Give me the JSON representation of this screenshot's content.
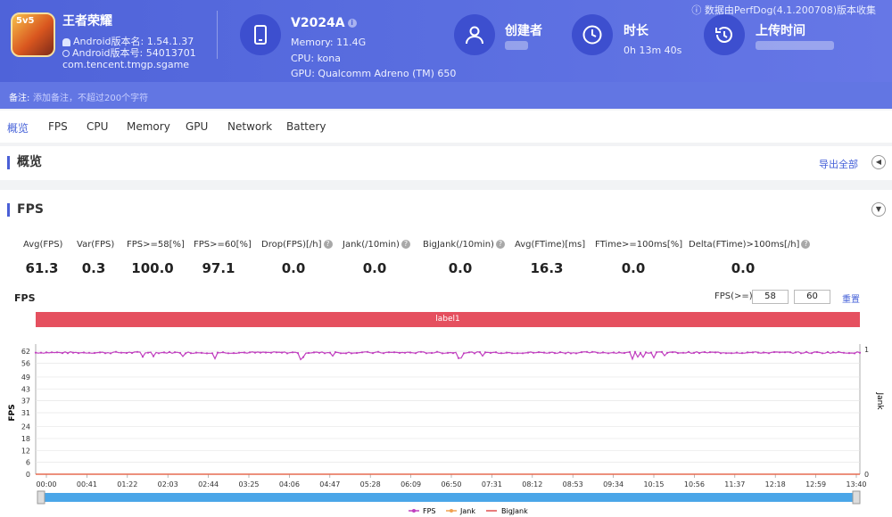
{
  "header": {
    "notice": "数据由PerfDog(4.1.200708)版本收集",
    "app_icon_text": "5v5",
    "app_name": "王者荣耀",
    "android_version": "Android版本名: 1.54.1.37",
    "android_build": "Android版本号: 54013701",
    "package": "com.tencent.tmgp.sgame",
    "device_name": "V2024A",
    "memory": "Memory: 11.4G",
    "cpu": "CPU: kona",
    "gpu": "GPU: Qualcomm Adreno (TM) 650",
    "creator_label": "创建者",
    "duration_label": "时长",
    "duration_value": "0h 13m 40s",
    "upload_label": "上传时间"
  },
  "remark": {
    "label": "备注:",
    "placeholder": "添加备注，不超过200个字符"
  },
  "tabs": [
    "概览",
    "FPS",
    "CPU",
    "Memory",
    "GPU",
    "Network",
    "Battery"
  ],
  "overview": {
    "title": "概览",
    "export": "导出全部"
  },
  "fps_section": {
    "title": "FPS",
    "metrics": [
      {
        "label": "Avg(FPS)",
        "value": "61.3",
        "help": false
      },
      {
        "label": "Var(FPS)",
        "value": "0.3",
        "help": false
      },
      {
        "label": "FPS>=58[%]",
        "value": "100.0",
        "help": false
      },
      {
        "label": "FPS>=60[%]",
        "value": "97.1",
        "help": false
      },
      {
        "label": "Drop(FPS)[/h]",
        "value": "0.0",
        "help": true
      },
      {
        "label": "Jank(/10min)",
        "value": "0.0",
        "help": true
      },
      {
        "label": "BigJank(/10min)",
        "value": "0.0",
        "help": true
      },
      {
        "label": "Avg(FTime)[ms]",
        "value": "16.3",
        "help": false
      },
      {
        "label": "FTime>=100ms[%]",
        "value": "0.0",
        "help": false
      },
      {
        "label": "Delta(FTime)>100ms[/h]",
        "value": "0.0",
        "help": true
      }
    ],
    "chart_title": "FPS",
    "threshold_label": "FPS(>=)",
    "threshold_1": "58",
    "threshold_2": "60",
    "reset": "重置",
    "label_bar": "label1"
  },
  "colors": {
    "accent": "#4f63d9",
    "fps": "#c03fbf",
    "jank": "#f0a050",
    "bigjank": "#e05050",
    "label": "#e5505f"
  },
  "chart_data": {
    "type": "line",
    "ylabel": "FPS",
    "y2label": "Jank",
    "yticks": [
      0,
      6,
      12,
      18,
      24,
      31,
      37,
      43,
      49,
      56,
      62
    ],
    "y2ticks": [
      0,
      1
    ],
    "ylim": [
      0,
      62
    ],
    "xticks": [
      "00:00",
      "00:41",
      "01:22",
      "02:03",
      "02:44",
      "03:25",
      "04:06",
      "04:47",
      "05:28",
      "06:09",
      "06:50",
      "07:31",
      "08:12",
      "08:53",
      "09:34",
      "10:15",
      "10:56",
      "11:37",
      "12:18",
      "12:59",
      "13:40"
    ],
    "series": [
      {
        "name": "FPS",
        "approx_value": 61.3
      },
      {
        "name": "Jank",
        "approx_value": 0
      },
      {
        "name": "BigJank",
        "approx_value": 0
      }
    ],
    "grid": true,
    "legend": "bottom"
  }
}
